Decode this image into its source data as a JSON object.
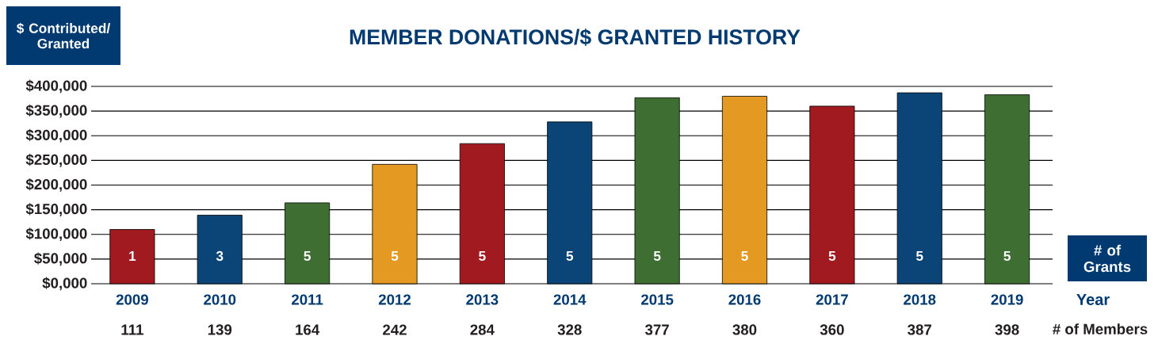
{
  "chart_data": {
    "type": "bar",
    "title": "MEMBER DONATIONS/$ GRANTED HISTORY",
    "ylabel": "$ Contributed/ Granted",
    "xlabel": "Year",
    "categories": [
      "2009",
      "2010",
      "2011",
      "2012",
      "2013",
      "2014",
      "2015",
      "2016",
      "2017",
      "2018",
      "2019"
    ],
    "values": [
      110000,
      139000,
      164000,
      242000,
      284000,
      328000,
      377000,
      380000,
      360000,
      387000,
      383000
    ],
    "colors": [
      "#a01a1f",
      "#0b4476",
      "#3f6e33",
      "#e49a22",
      "#a01a1f",
      "#0b4476",
      "#3f6e33",
      "#e49a22",
      "#a01a1f",
      "#0b4476",
      "#3f6e33"
    ],
    "ylim": [
      0,
      400000
    ],
    "yticks": [
      {
        "value": 0,
        "label": "$0,000"
      },
      {
        "value": 50000,
        "label": "$50,000"
      },
      {
        "value": 100000,
        "label": "$100,000"
      },
      {
        "value": 150000,
        "label": "$150,000"
      },
      {
        "value": 200000,
        "label": "$200,000"
      },
      {
        "value": 250000,
        "label": "$250,000"
      },
      {
        "value": 300000,
        "label": "$300,000"
      },
      {
        "value": 350000,
        "label": "$350,000"
      },
      {
        "value": 400000,
        "label": "$400,000"
      }
    ],
    "grid": "y",
    "annotations": [
      "# of Grants",
      "# of Members",
      "1",
      "3",
      "5",
      "5",
      "5",
      "5",
      "5",
      "5",
      "5",
      "5",
      "5",
      "111",
      "139",
      "164",
      "242",
      "284",
      "328",
      "377",
      "380",
      "360",
      "387",
      "398"
    ]
  }
}
